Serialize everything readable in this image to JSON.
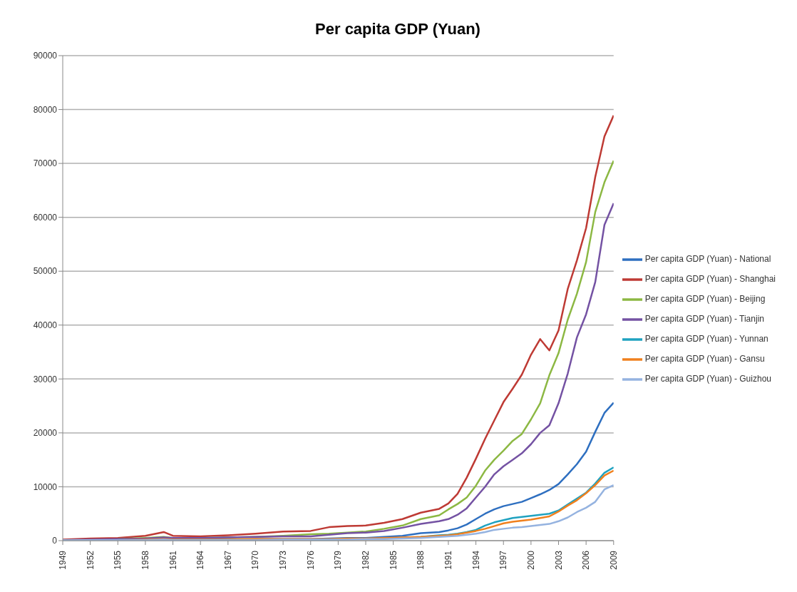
{
  "chart_data": {
    "type": "line",
    "title": "Per capita GDP (Yuan)",
    "x": [
      1949,
      1952,
      1955,
      1958,
      1960,
      1961,
      1964,
      1967,
      1970,
      1973,
      1976,
      1978,
      1980,
      1982,
      1984,
      1986,
      1988,
      1990,
      1991,
      1992,
      1993,
      1994,
      1995,
      1996,
      1997,
      1998,
      1999,
      2000,
      2001,
      2002,
      2003,
      2004,
      2005,
      2006,
      2007,
      2008,
      2009
    ],
    "series": [
      {
        "name": "Per capita GDP (Yuan) - National",
        "color": "#2e6fc0",
        "values": [
          100,
          100,
          200,
          200,
          200,
          200,
          200,
          200,
          300,
          300,
          300,
          400,
          500,
          500,
          700,
          900,
          1400,
          1600,
          1900,
          2300,
          3000,
          4000,
          5000,
          5800,
          6400,
          6800,
          7200,
          7900,
          8600,
          9400,
          10500,
          12300,
          14200,
          16500,
          20200,
          23700,
          25600
        ]
      },
      {
        "name": "Per capita GDP (Yuan) - Shanghai",
        "color": "#be3a34",
        "values": [
          200,
          400,
          500,
          900,
          1600,
          900,
          800,
          1000,
          1300,
          1700,
          1800,
          2500,
          2700,
          2800,
          3300,
          4000,
          5200,
          5900,
          6900,
          8700,
          11700,
          15200,
          18900,
          22300,
          25700,
          28200,
          30800,
          34500,
          37400,
          35300,
          39000,
          46700,
          52000,
          58000,
          67500,
          75000,
          78900
        ]
      },
      {
        "name": "Per capita GDP (Yuan) - Beijing",
        "color": "#8cb843",
        "values": [
          null,
          null,
          300,
          500,
          700,
          500,
          500,
          600,
          700,
          900,
          1200,
          1300,
          1500,
          1700,
          2200,
          2800,
          4000,
          4700,
          5800,
          6800,
          8000,
          10200,
          13000,
          15000,
          16700,
          18500,
          19800,
          22500,
          25500,
          30700,
          34800,
          41000,
          45800,
          51700,
          61000,
          66500,
          70500
        ]
      },
      {
        "name": "Per capita GDP (Yuan) - Tianjin",
        "color": "#7452a3",
        "values": [
          100,
          200,
          300,
          400,
          600,
          500,
          500,
          600,
          700,
          800,
          800,
          1100,
          1400,
          1500,
          1800,
          2400,
          3100,
          3600,
          4000,
          4800,
          6000,
          8000,
          10000,
          12300,
          13800,
          15000,
          16200,
          17900,
          20000,
          21400,
          25500,
          31000,
          37700,
          42000,
          48000,
          58600,
          62600
        ]
      },
      {
        "name": "Per capita GDP (Yuan) - Yunnan",
        "color": "#1fa2c0",
        "values": [
          null,
          null,
          null,
          null,
          null,
          null,
          null,
          null,
          null,
          null,
          200,
          200,
          300,
          300,
          400,
          500,
          700,
          1000,
          1100,
          1300,
          1600,
          2000,
          2800,
          3400,
          3800,
          4200,
          4400,
          4600,
          4800,
          5000,
          5600,
          6700,
          7800,
          8900,
          10600,
          12600,
          13600
        ]
      },
      {
        "name": "Per capita GDP (Yuan) - Gansu",
        "color": "#f0801e",
        "values": [
          100,
          100,
          100,
          200,
          300,
          200,
          200,
          200,
          300,
          300,
          300,
          300,
          400,
          400,
          500,
          600,
          700,
          900,
          1000,
          1200,
          1500,
          1800,
          2200,
          2700,
          3200,
          3500,
          3700,
          3900,
          4200,
          4500,
          5400,
          6500,
          7500,
          8800,
          10300,
          12100,
          13000
        ]
      },
      {
        "name": "Per capita GDP (Yuan) - Guizhou",
        "color": "#95b3e0",
        "values": [
          100,
          100,
          100,
          100,
          200,
          100,
          100,
          100,
          100,
          200,
          200,
          200,
          200,
          300,
          300,
          400,
          500,
          700,
          800,
          900,
          1100,
          1300,
          1600,
          2000,
          2200,
          2400,
          2500,
          2700,
          2900,
          3100,
          3600,
          4300,
          5300,
          6100,
          7200,
          9500,
          10300
        ]
      }
    ],
    "xlim": [
      1949,
      2009
    ],
    "xticks": [
      1949,
      1952,
      1955,
      1958,
      1961,
      1964,
      1967,
      1970,
      1973,
      1976,
      1979,
      1982,
      1985,
      1988,
      1991,
      1994,
      1997,
      2000,
      2003,
      2006,
      2009
    ],
    "ylim": [
      0,
      90000
    ],
    "yticks": [
      0,
      10000,
      20000,
      30000,
      40000,
      50000,
      60000,
      70000,
      80000,
      90000
    ],
    "grid": "y",
    "legend": "right",
    "marker": "none",
    "line_style": "solid"
  }
}
